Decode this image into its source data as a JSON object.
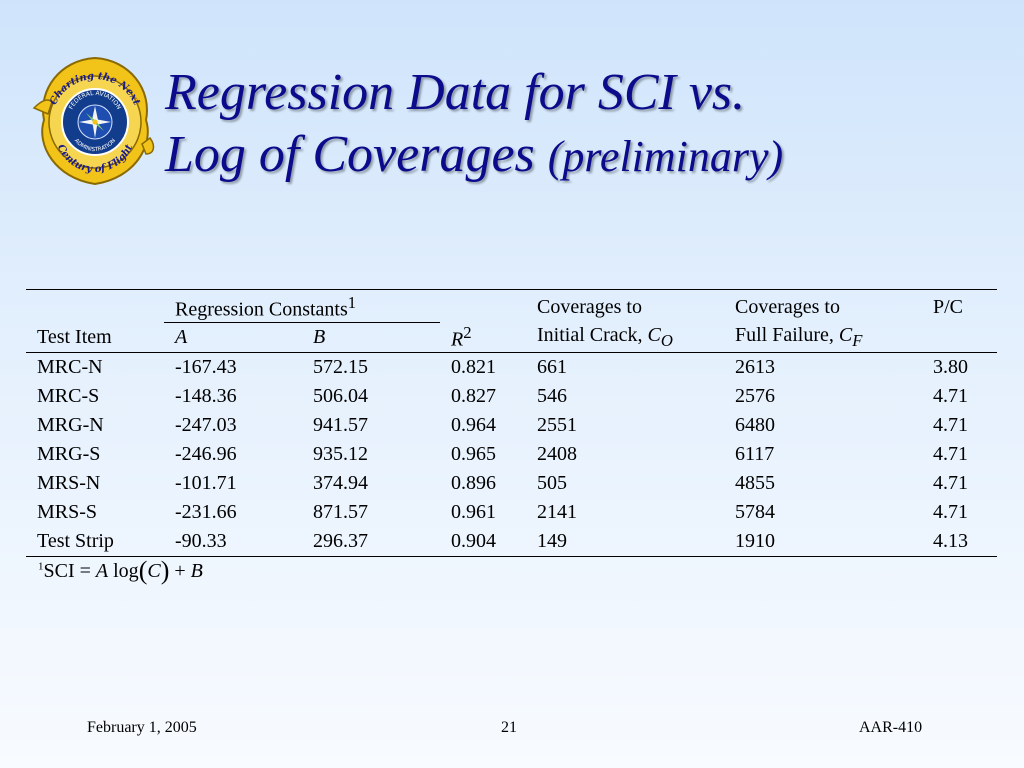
{
  "seal": {
    "top_text": "Charting the Next",
    "bottom_text": "Century of Flight",
    "inner_top": "FEDERAL AVIATION",
    "inner_bottom": "ADMINISTRATION",
    "icon": "faa-seal-icon"
  },
  "title": {
    "line1": "Regression Data for SCI vs.",
    "line2": "Log of Coverages",
    "line2_suffix": "(preliminary)"
  },
  "table": {
    "group_header": "Regression Constants",
    "group_footnote_mark": "1",
    "test_item_header": "Test Item",
    "a_header": "A",
    "b_header": "B",
    "r2_header": "R",
    "r2_exp": "2",
    "co_header_line1": "Coverages to",
    "co_header_line2": "Initial Crack, ",
    "co_symbol": "C",
    "co_subscript": "O",
    "cf_header_line1": "Coverages to",
    "cf_header_line2": "Full Failure, ",
    "cf_symbol": "C",
    "cf_subscript": "F",
    "pc_header": "P/C",
    "rows": [
      {
        "item": "MRC-N",
        "a": "-167.43",
        "b": "572.15",
        "r2": "0.821",
        "co": "661",
        "cf": "2613",
        "pc": "3.80"
      },
      {
        "item": "MRC-S",
        "a": "-148.36",
        "b": "506.04",
        "r2": "0.827",
        "co": "546",
        "cf": "2576",
        "pc": "4.71"
      },
      {
        "item": "MRG-N",
        "a": "-247.03",
        "b": "941.57",
        "r2": "0.964",
        "co": "2551",
        "cf": "6480",
        "pc": "4.71"
      },
      {
        "item": "MRG-S",
        "a": "-246.96",
        "b": "935.12",
        "r2": "0.965",
        "co": "2408",
        "cf": "6117",
        "pc": "4.71"
      },
      {
        "item": "MRS-N",
        "a": "-101.71",
        "b": "374.94",
        "r2": "0.896",
        "co": "505",
        "cf": "4855",
        "pc": "4.71"
      },
      {
        "item": "MRS-S",
        "a": "-231.66",
        "b": "871.57",
        "r2": "0.961",
        "co": "2141",
        "cf": "5784",
        "pc": "4.71"
      },
      {
        "item": "Test Strip",
        "a": "-90.33",
        "b": "296.37",
        "r2": "0.904",
        "co": "149",
        "cf": "1910",
        "pc": "4.13"
      }
    ]
  },
  "footnote": {
    "mark": "1",
    "lhs": "SCI",
    "eq": " = ",
    "a": "A",
    "log": " log",
    "lparen": "(",
    "c": "C",
    "rparen": ")",
    "plus": " + ",
    "b": "B"
  },
  "footer": {
    "date": "February 1, 2005",
    "page": "21",
    "code": "AAR-410"
  }
}
